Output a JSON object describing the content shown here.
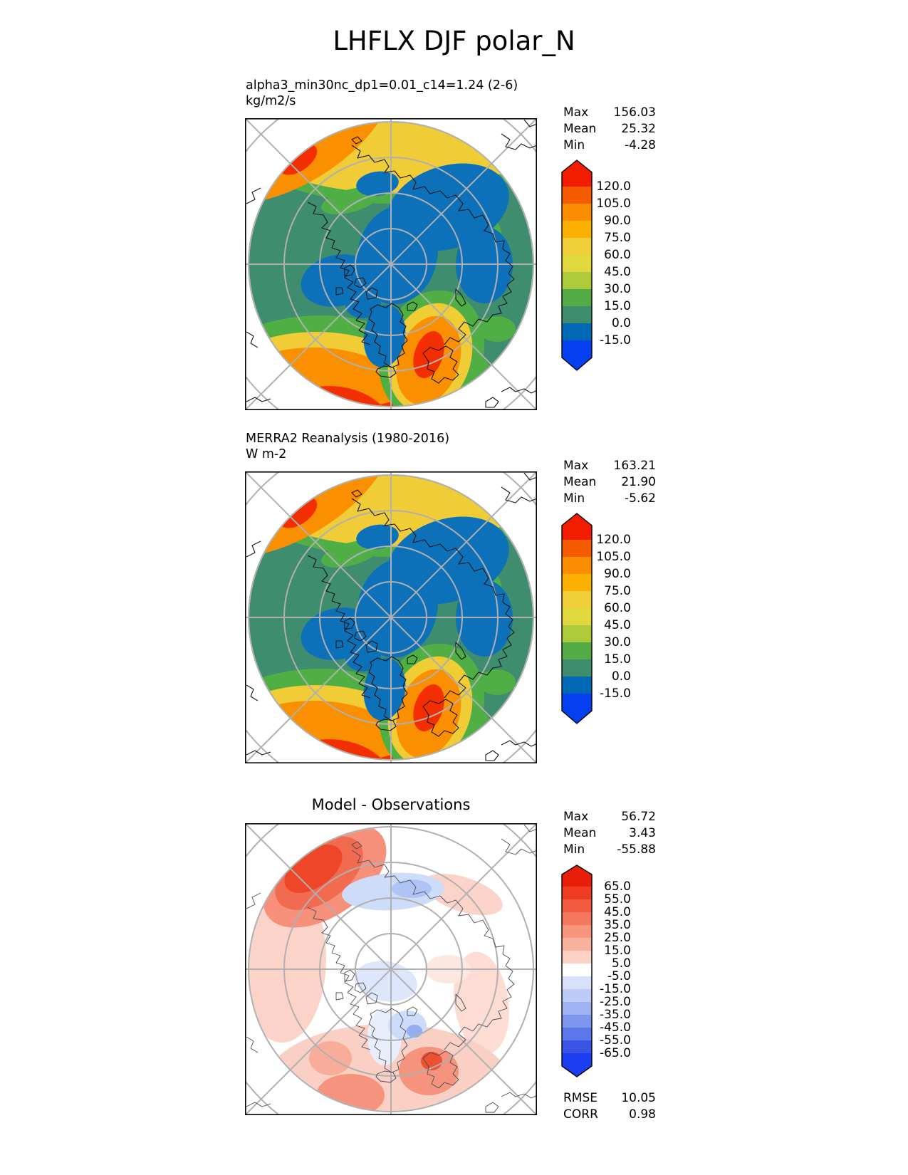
{
  "page": {
    "title": "LHFLX DJF polar_N"
  },
  "panels": [
    {
      "name": "model",
      "subtitle": "alpha3_min30nc_dp1=0.01_c14=1.24 (2-6)",
      "units": "kg/m2/s",
      "stats": [
        {
          "label": "Max",
          "value": "156.03"
        },
        {
          "label": "Mean",
          "value": "25.32"
        },
        {
          "label": "Min",
          "value": "-4.28"
        }
      ],
      "colorbar": {
        "ticks": [
          "120.0",
          "105.0",
          "90.0",
          "75.0",
          "60.0",
          "45.0",
          "30.0",
          "15.0",
          "0.0",
          "-15.0"
        ],
        "colors": [
          "#F21D00",
          "#F75B00",
          "#FA8D00",
          "#FCB100",
          "#EFCE39",
          "#DFD83E",
          "#AECB3C",
          "#53AC46",
          "#3E8D6E",
          "#0069B5",
          "#0440F0"
        ]
      }
    },
    {
      "name": "reference",
      "subtitle": "MERRA2 Reanalysis (1980-2016)",
      "units": "W m-2",
      "stats": [
        {
          "label": "Max",
          "value": "163.21"
        },
        {
          "label": "Mean",
          "value": "21.90"
        },
        {
          "label": "Min",
          "value": "-5.62"
        }
      ],
      "colorbar": {
        "ticks": [
          "120.0",
          "105.0",
          "90.0",
          "75.0",
          "60.0",
          "45.0",
          "30.0",
          "15.0",
          "0.0",
          "-15.0"
        ],
        "colors": [
          "#F21D00",
          "#F75B00",
          "#FA8D00",
          "#FCB100",
          "#EFCE39",
          "#DFD83E",
          "#AECB3C",
          "#53AC46",
          "#3E8D6E",
          "#0069B5",
          "#0440F0"
        ]
      }
    },
    {
      "name": "difference",
      "title": "Model - Observations",
      "stats": [
        {
          "label": "Max",
          "value": "56.72"
        },
        {
          "label": "Mean",
          "value": "3.43"
        },
        {
          "label": "Min",
          "value": "-55.88"
        }
      ],
      "colorbar": {
        "ticks": [
          "65.0",
          "55.0",
          "45.0",
          "35.0",
          "25.0",
          "15.0",
          "5.0",
          "-5.0",
          "-15.0",
          "-25.0",
          "-35.0",
          "-45.0",
          "-55.0",
          "-65.0"
        ],
        "colors": [
          "#E81E09",
          "#EE3B22",
          "#F15B40",
          "#F4785E",
          "#F7957D",
          "#F9B29E",
          "#FCD2C4",
          "#FFFFFF",
          "#D9E1FA",
          "#BECBF6",
          "#9FB3F2",
          "#7E96EE",
          "#5C77EA",
          "#3A55E6",
          "#1B3EF0"
        ]
      },
      "metrics": [
        {
          "label": "RMSE",
          "value": "10.05"
        },
        {
          "label": "CORR",
          "value": "0.98"
        }
      ]
    }
  ],
  "chart_data": [
    {
      "type": "heatmap",
      "variant": "filled_contour_polar_map",
      "projection": "north_polar_stereographic",
      "title": "alpha3_min30nc_dp1=0.01_c14=1.24 (2-6)",
      "units": "kg/m2/s",
      "stats": {
        "max": 156.03,
        "mean": 25.32,
        "min": -4.28
      },
      "contour_levels": [
        -15.0,
        0.0,
        15.0,
        30.0,
        45.0,
        60.0,
        75.0,
        90.0,
        105.0,
        120.0
      ],
      "colorbar_extend": "both",
      "legend_position": "right",
      "grid": "polar graticule, latitude rings and 45-degree meridians"
    },
    {
      "type": "heatmap",
      "variant": "filled_contour_polar_map",
      "projection": "north_polar_stereographic",
      "title": "MERRA2 Reanalysis (1980-2016)",
      "units": "W m-2",
      "stats": {
        "max": 163.21,
        "mean": 21.9,
        "min": -5.62
      },
      "contour_levels": [
        -15.0,
        0.0,
        15.0,
        30.0,
        45.0,
        60.0,
        75.0,
        90.0,
        105.0,
        120.0
      ],
      "colorbar_extend": "both",
      "legend_position": "right",
      "grid": "polar graticule, latitude rings and 45-degree meridians"
    },
    {
      "type": "heatmap",
      "variant": "filled_contour_polar_map",
      "projection": "north_polar_stereographic",
      "title": "Model - Observations",
      "stats": {
        "max": 56.72,
        "mean": 3.43,
        "min": -55.88
      },
      "contour_levels": [
        -65.0,
        -55.0,
        -45.0,
        -35.0,
        -25.0,
        -15.0,
        -5.0,
        5.0,
        15.0,
        25.0,
        35.0,
        45.0,
        55.0,
        65.0
      ],
      "colorbar_extend": "both",
      "legend_position": "right",
      "rmse": 10.05,
      "corr": 0.98
    }
  ]
}
